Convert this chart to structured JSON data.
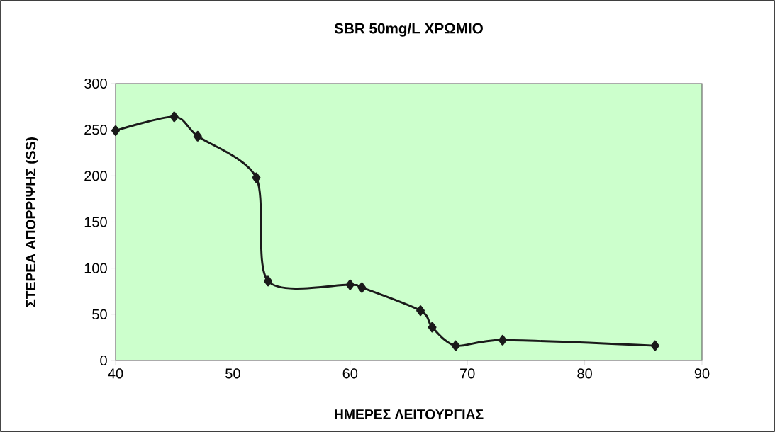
{
  "chart_data": {
    "type": "line",
    "title": "SBR 50mg/L ΧΡΩΜΙΟ",
    "xlabel": "ΗΜΕΡΕΣ ΛΕΙΤΟΥΡΓΙΑΣ",
    "ylabel": "ΣΤΕΡΕΑ ΑΠΟΡΡΙΨΗΣ (SS)",
    "x": [
      40,
      45,
      47,
      52,
      53,
      60,
      61,
      66,
      67,
      69,
      73,
      86
    ],
    "series": [
      {
        "color": "#1a1a1a",
        "values": [
          249,
          264,
          243,
          198,
          86,
          82,
          79,
          54,
          36,
          16,
          22,
          16
        ]
      }
    ],
    "xlim": [
      40,
      90
    ],
    "xticks": [
      40,
      50,
      60,
      70,
      80,
      90
    ],
    "ylim": [
      0,
      300
    ],
    "yticks": [
      0,
      50,
      100,
      150,
      200,
      250,
      300
    ],
    "grid": false,
    "marker": "diamond",
    "line_style": "solid"
  }
}
